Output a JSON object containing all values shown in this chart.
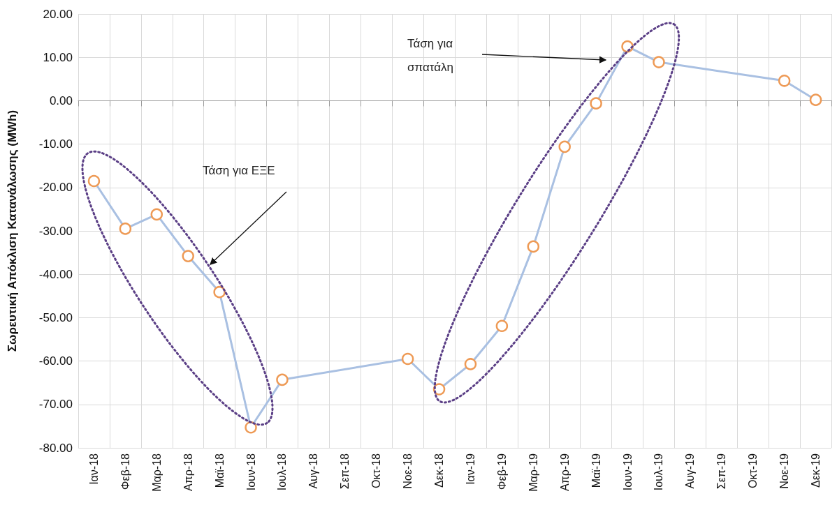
{
  "chart_data": {
    "type": "line",
    "ylabel": "Σωρευτική Απόκλιση Κατανάλωσης (MWh)",
    "categories": [
      "Ιαν-18",
      "Φεβ-18",
      "Μαρ-18",
      "Απρ-18",
      "Μαϊ-18",
      "Ιουν-18",
      "Ιουλ-18",
      "Αυγ-18",
      "Σεπ-18",
      "Οκτ-18",
      "Νοε-18",
      "Δεκ-18",
      "Ιαν-19",
      "Φεβ-19",
      "Μαρ-19",
      "Απρ-19",
      "Μαϊ-19",
      "Ιουν-19",
      "Ιουλ-19",
      "Αυγ-19",
      "Σεπ-19",
      "Οκτ-19",
      "Νοε-19",
      "Δεκ-19"
    ],
    "series": [
      {
        "color": "#a9c0e2",
        "colors": [
          "#ee9a55",
          "#ee9a55",
          "#ee9a55",
          "#ee9a55",
          "#ee9a55",
          "#ee9a55",
          "#ee9a55",
          "#ee9a55",
          "#ee9a55",
          "#ee9a55",
          "#ee9a55",
          "#ee9a55",
          "#ee9a55",
          "#ee9a55",
          "#ee9a55",
          "#ee9a55",
          "#ee9a55",
          "#ee9a55",
          "#ee9a55",
          "#ee9a55",
          "#ee9a55",
          "#ee9a55",
          "#ee9a55",
          "#ee9a55"
        ],
        "values": [
          -18.5,
          -29.5,
          -26.2,
          -35.8,
          -44.1,
          -75.3,
          -64.3,
          null,
          null,
          null,
          -59.5,
          -66.5,
          -60.7,
          -51.9,
          -33.6,
          -10.6,
          -0.6,
          12.5,
          8.9,
          null,
          null,
          null,
          4.6,
          0.2
        ]
      }
    ],
    "ylim": [
      -80,
      20
    ],
    "yticks": [
      {
        "value": -80,
        "label": "-80.00"
      },
      {
        "value": -70,
        "label": "-70.00"
      },
      {
        "value": -60,
        "label": "-60.00"
      },
      {
        "value": -50,
        "label": "-50.00"
      },
      {
        "value": -40,
        "label": "-40.00"
      },
      {
        "value": -30,
        "label": "-30.00"
      },
      {
        "value": -20,
        "label": "-20.00"
      },
      {
        "value": -10,
        "label": "-10.00"
      },
      {
        "value": 0,
        "label": "0.00"
      },
      {
        "value": 10,
        "label": "10.00"
      },
      {
        "value": 20,
        "label": "20.00"
      }
    ],
    "grid": true,
    "marker": "circle",
    "annotations": [
      "Τάση για ΕΞΕ",
      "Τάση για σπατάλη"
    ]
  }
}
